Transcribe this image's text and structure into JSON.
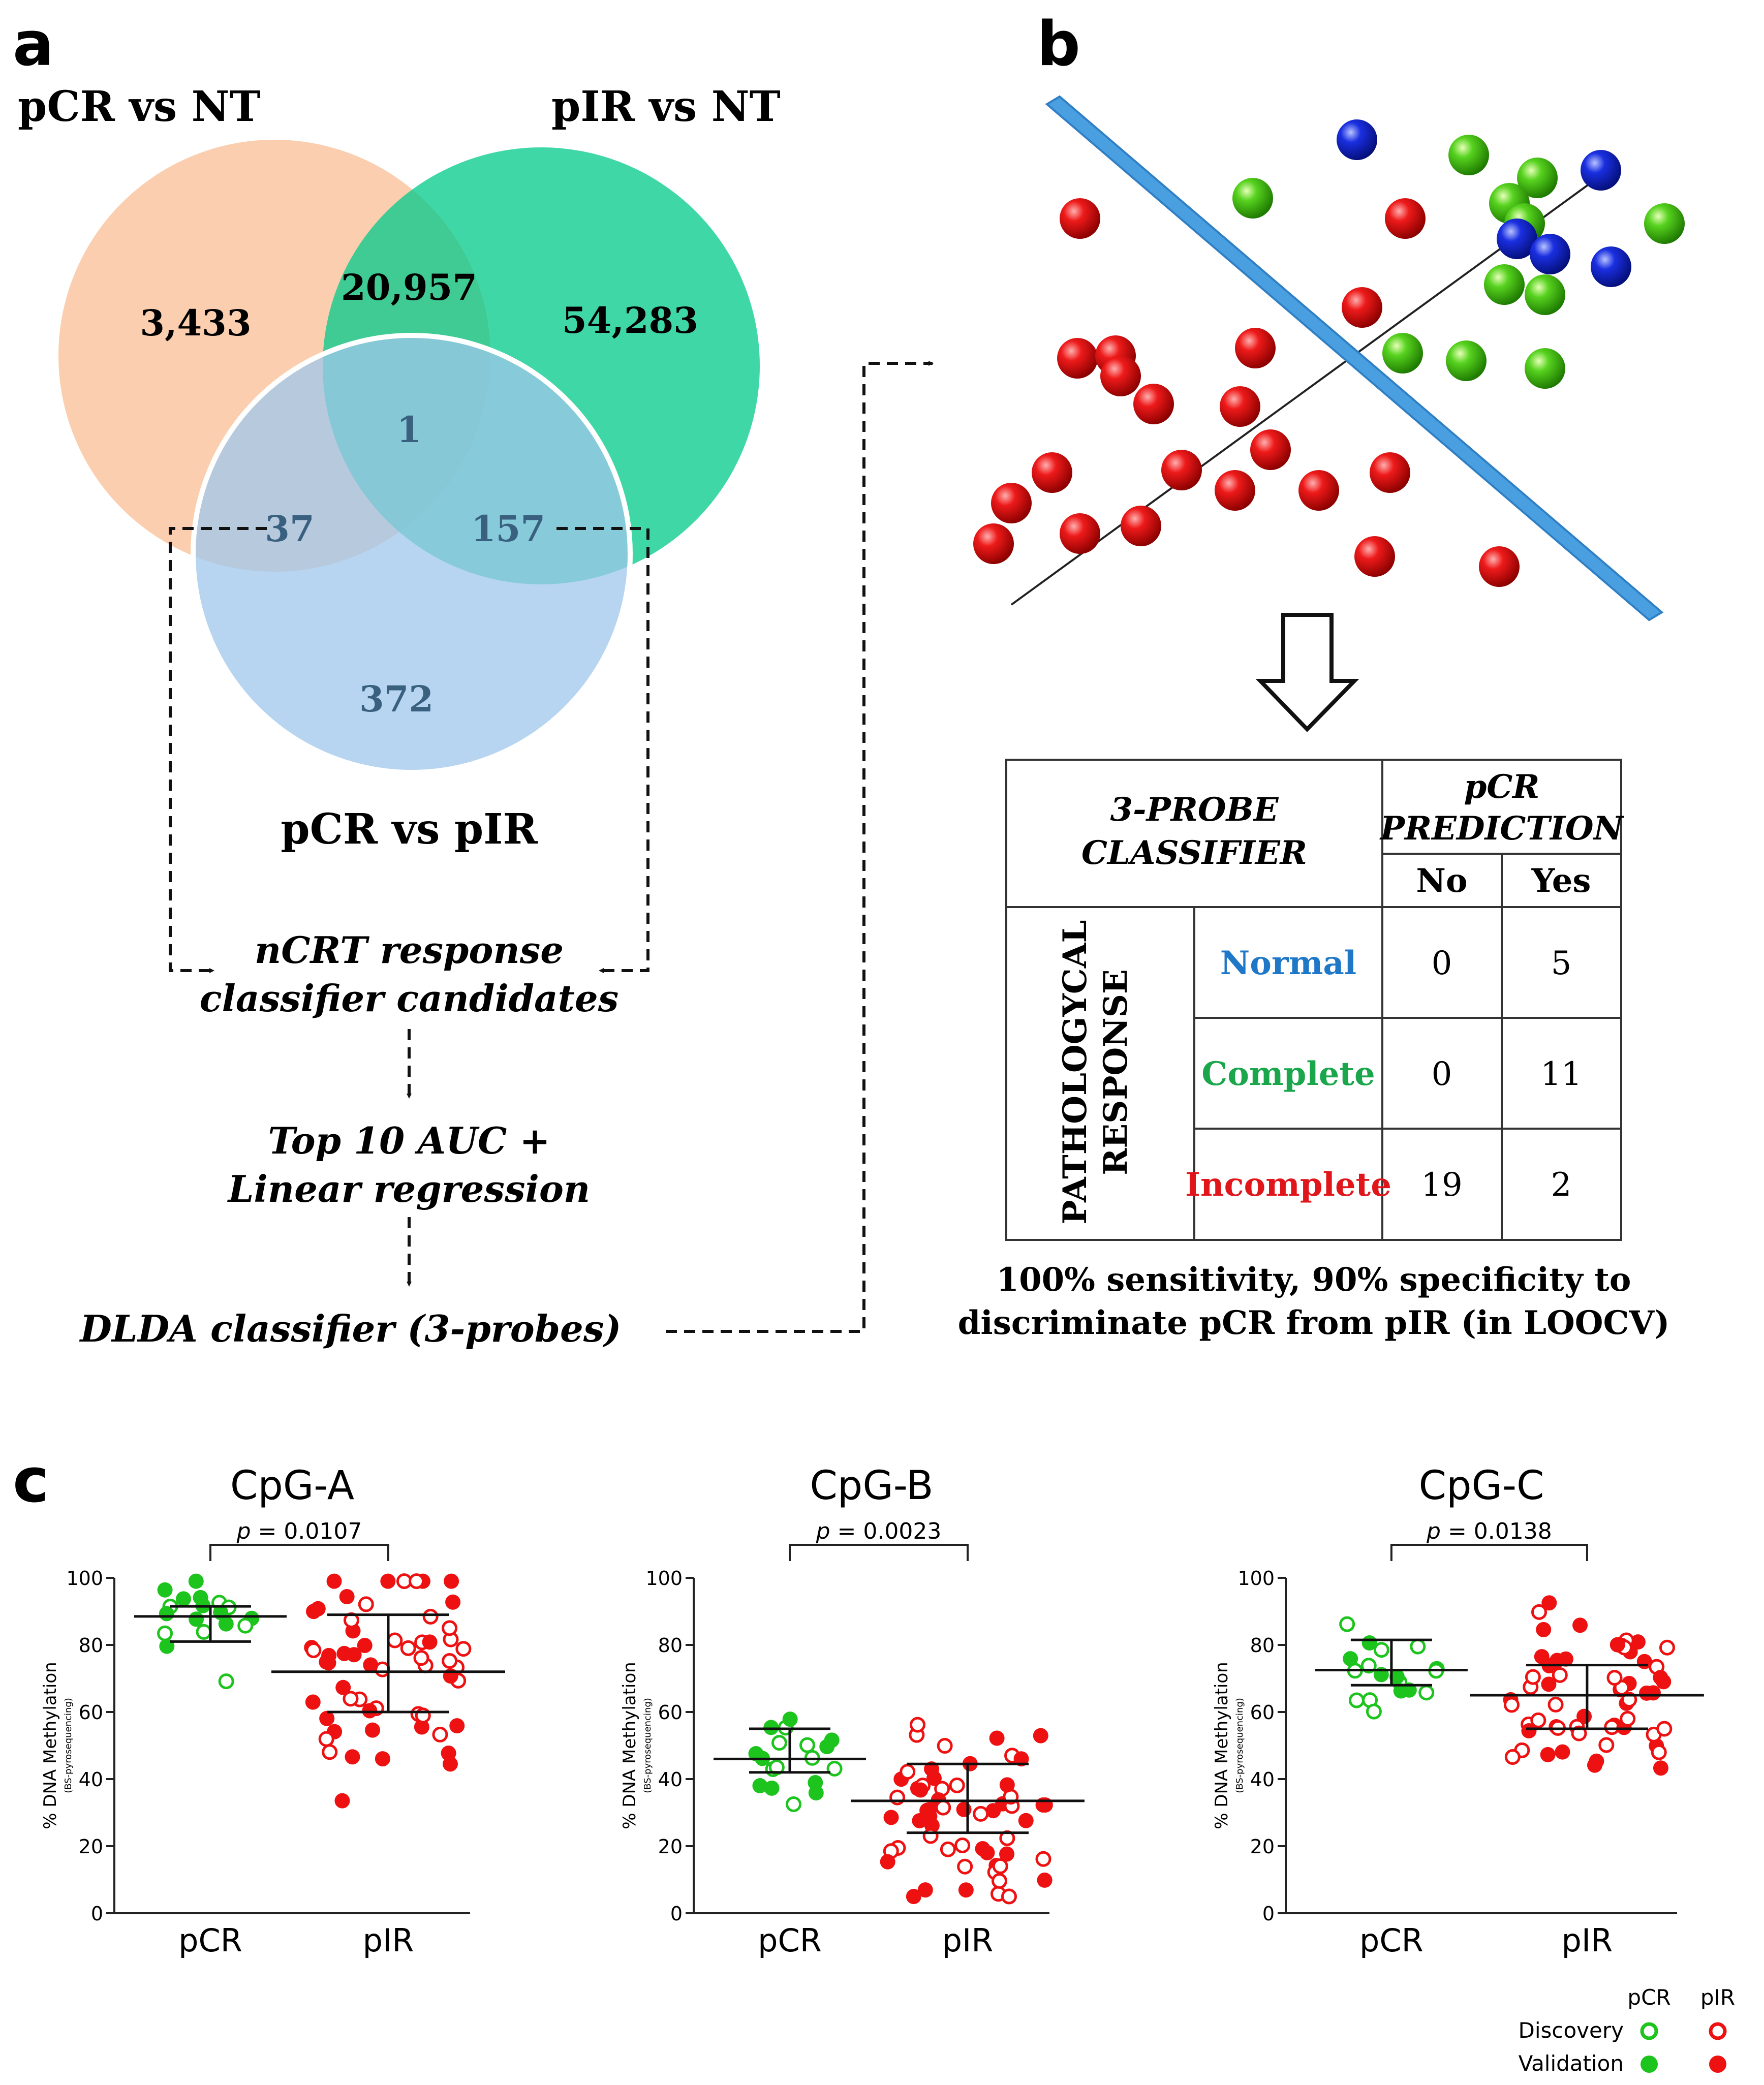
{
  "panel_a": {
    "letter": "a",
    "set_labels": {
      "pcr_nt": "pCR vs NT",
      "pir_nt": "pIR vs NT",
      "pcr_pir": "pCR vs pIR"
    },
    "region_counts": {
      "pcr_nt_only": "3,433",
      "pcr_nt_pir_nt": "20,957",
      "pir_nt_only": "54,283",
      "all_three": "1",
      "pcr_nt_pcr_pir": "37",
      "pir_nt_pcr_pir": "157",
      "pcr_pir_only": "372"
    },
    "colors": {
      "pcr_nt": "#f9c6a0",
      "pir_nt": "#00c98a",
      "pcr_pir": "#9fc7ec"
    },
    "flow": [
      "nCRT response",
      "classifier candidates",
      "Top 10 AUC +",
      "Linear regression",
      "DLDA  classifier (3-probes)"
    ]
  },
  "panel_b": {
    "letter": "b",
    "table": {
      "header_left_line1": "3-PROBE",
      "header_left_line2": "CLASSIFIER",
      "header_right_line1": "pCR",
      "header_right_line2": "PREDICTION",
      "col_no": "No",
      "col_yes": "Yes",
      "side_label_line1": "PATHOLOGYCAL",
      "side_label_line2": "RESPONSE",
      "rows": [
        {
          "label": "Normal",
          "color": "#1f77c8",
          "no": "0",
          "yes": "5"
        },
        {
          "label": "Complete",
          "color": "#1aa64a",
          "no": "0",
          "yes": "11"
        },
        {
          "label": "Incomplete",
          "color": "#e0161b",
          "no": "19",
          "yes": "2"
        }
      ]
    },
    "caption_line1": "100% sensitivity, 90% specificity  to",
    "caption_line2": "discriminate pCR from pIR (in LOOCV)"
  },
  "chart_data": [
    {
      "type": "scatter",
      "title": "CpG-A",
      "p_prefix": "p",
      "p_value": "= 0.0107",
      "ylabel": "% DNA Methylation",
      "ylabel_sub": "(BS-pyrosequencing)",
      "ylim": [
        0,
        100
      ],
      "yticks": [
        0,
        20,
        40,
        60,
        80,
        100
      ],
      "categories": [
        "pCR",
        "pIR"
      ],
      "summary": {
        "pCR": {
          "median": 88.5,
          "q1": 81,
          "q3": 91.5
        },
        "pIR": {
          "median": 72,
          "q1": 60,
          "q3": 89
        }
      }
    },
    {
      "type": "scatter",
      "title": "CpG-B",
      "p_prefix": "p",
      "p_value": "= 0.0023",
      "ylabel": "% DNA Methylation",
      "ylabel_sub": "(BS-pyrosequencing)",
      "ylim": [
        0,
        100
      ],
      "yticks": [
        0,
        20,
        40,
        60,
        80,
        100
      ],
      "categories": [
        "pCR",
        "pIR"
      ],
      "summary": {
        "pCR": {
          "median": 46,
          "q1": 42,
          "q3": 55
        },
        "pIR": {
          "median": 33.5,
          "q1": 24,
          "q3": 44.5
        }
      }
    },
    {
      "type": "scatter",
      "title": "CpG-C",
      "p_prefix": "p",
      "p_value": "= 0.0138",
      "ylabel": "% DNA Methylation",
      "ylabel_sub": "(BS-pyrosequencing)",
      "ylim": [
        0,
        100
      ],
      "yticks": [
        0,
        20,
        40,
        60,
        80,
        100
      ],
      "categories": [
        "pCR",
        "pIR"
      ],
      "summary": {
        "pCR": {
          "median": 72.5,
          "q1": 68,
          "q3": 81.5
        },
        "pIR": {
          "median": 65,
          "q1": 55,
          "q3": 74
        }
      }
    }
  ],
  "panel_c": {
    "letter": "c",
    "legend": {
      "col_pcr": "pCR",
      "col_pir": "pIR",
      "row_discovery": "Discovery",
      "row_validation": "Validation"
    },
    "colors": {
      "pcr": "#1dc41d",
      "pir": "#ee1111"
    }
  }
}
